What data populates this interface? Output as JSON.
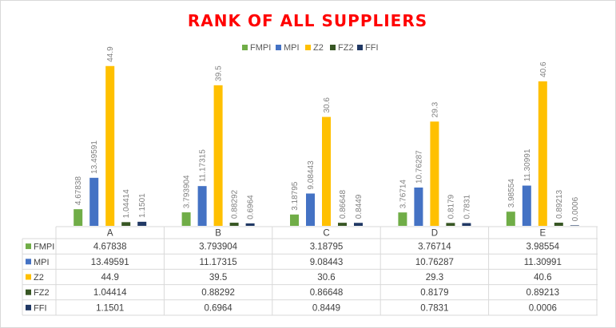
{
  "chart_data": {
    "type": "bar",
    "title": "RANK OF ALL SUPPLIERS",
    "title_color": "#ff0000",
    "categories": [
      "A",
      "B",
      "C",
      "D",
      "E"
    ],
    "series": [
      {
        "name": "FMPI",
        "color": "#70ad47",
        "values": [
          4.67838,
          3.793904,
          3.18795,
          3.76714,
          3.98554
        ],
        "labels": [
          "4.67838",
          "3.793904",
          "3.18795",
          "3.76714",
          "3.98554"
        ]
      },
      {
        "name": "MPI",
        "color": "#4472c4",
        "values": [
          13.49591,
          11.17315,
          9.08443,
          10.76287,
          11.30991
        ],
        "labels": [
          "13.49591",
          "11.17315",
          "9.08443",
          "10.76287",
          "11.30991"
        ]
      },
      {
        "name": "Z2",
        "color": "#ffc000",
        "values": [
          44.9,
          39.5,
          30.6,
          29.3,
          40.6
        ],
        "labels": [
          "44.9",
          "39.5",
          "30.6",
          "29.3",
          "40.6"
        ]
      },
      {
        "name": "FZ2",
        "color": "#375623",
        "values": [
          1.04414,
          0.88292,
          0.86648,
          0.8179,
          0.89213
        ],
        "labels": [
          "1.04414",
          "0.88292",
          "0.86648",
          "0.8179",
          "0.89213"
        ]
      },
      {
        "name": "FFI",
        "color": "#203864",
        "values": [
          1.1501,
          0.6964,
          0.8449,
          0.7831,
          0.0006
        ],
        "labels": [
          "1.1501",
          "0.6964",
          "0.8449",
          "0.7831",
          "0.0006"
        ]
      }
    ],
    "ylim": [
      0,
      50
    ],
    "grid": false,
    "legend_position": "top",
    "data_table": true
  }
}
